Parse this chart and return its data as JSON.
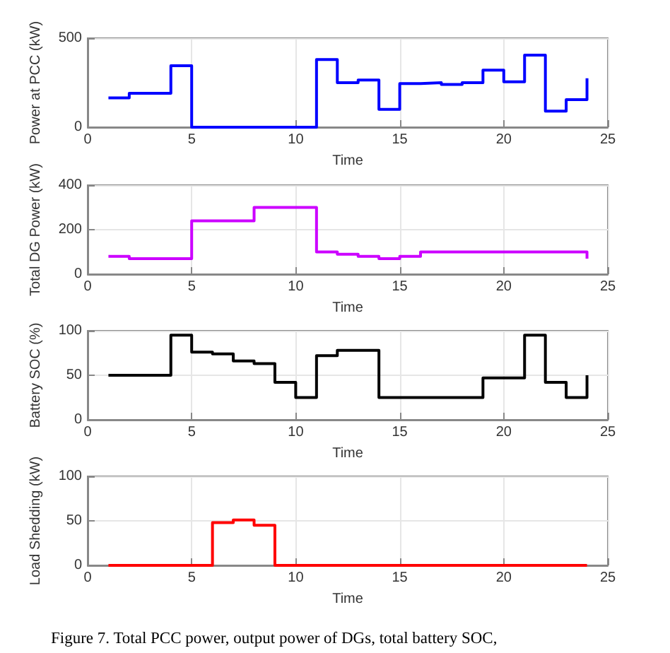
{
  "chart_data": [
    {
      "type": "step",
      "xlabel": "Time",
      "ylabel": "Power at PCC (kW)",
      "x": [
        1,
        2,
        3,
        4,
        5,
        6,
        7,
        8,
        9,
        10,
        11,
        12,
        13,
        14,
        15,
        16,
        17,
        18,
        19,
        20,
        21,
        22,
        23,
        24
      ],
      "series": [
        {
          "color": "#0000ff",
          "values": [
            165,
            190,
            190,
            345,
            0,
            0,
            0,
            0,
            0,
            0,
            380,
            250,
            265,
            100,
            245,
            250,
            240,
            250,
            320,
            255,
            405,
            90,
            155,
            275
          ]
        }
      ],
      "xlim": [
        0,
        25
      ],
      "xticks": [
        0,
        5,
        10,
        15,
        20,
        25
      ],
      "ylim": [
        0,
        500
      ],
      "yticks": [
        0,
        500
      ],
      "grid": true
    },
    {
      "type": "step",
      "xlabel": "Time",
      "ylabel": "Total DG Power (kW)",
      "x": [
        1,
        2,
        3,
        4,
        5,
        6,
        7,
        8,
        9,
        10,
        11,
        12,
        13,
        14,
        15,
        16,
        17,
        18,
        19,
        20,
        21,
        22,
        23,
        24
      ],
      "series": [
        {
          "color": "#cc00ff",
          "values": [
            80,
            70,
            70,
            70,
            240,
            240,
            240,
            300,
            300,
            300,
            100,
            90,
            80,
            70,
            80,
            100,
            100,
            100,
            100,
            100,
            100,
            100,
            100,
            70
          ]
        }
      ],
      "xlim": [
        0,
        25
      ],
      "xticks": [
        0,
        5,
        10,
        15,
        20,
        25
      ],
      "ylim": [
        0,
        400
      ],
      "yticks": [
        0,
        200,
        400
      ],
      "grid": true
    },
    {
      "type": "step",
      "xlabel": "Time",
      "ylabel": "Battery SOC (%)",
      "x": [
        1,
        2,
        3,
        4,
        5,
        6,
        7,
        8,
        9,
        10,
        11,
        12,
        13,
        14,
        15,
        16,
        17,
        18,
        19,
        20,
        21,
        22,
        23,
        24
      ],
      "series": [
        {
          "color": "#000000",
          "values": [
            50,
            50,
            50,
            95,
            76,
            74,
            66,
            63,
            42,
            25,
            72,
            78,
            78,
            25,
            25,
            25,
            25,
            25,
            47,
            47,
            95,
            42,
            25,
            50
          ]
        }
      ],
      "xlim": [
        0,
        25
      ],
      "xticks": [
        0,
        5,
        10,
        15,
        20,
        25
      ],
      "ylim": [
        0,
        100
      ],
      "yticks": [
        0,
        50,
        100
      ],
      "grid": true
    },
    {
      "type": "step",
      "xlabel": "Time",
      "ylabel": "Load Shedding (kW)",
      "x": [
        1,
        2,
        3,
        4,
        5,
        6,
        7,
        8,
        9,
        10,
        11,
        12,
        13,
        14,
        15,
        16,
        17,
        18,
        19,
        20,
        21,
        22,
        23,
        24
      ],
      "series": [
        {
          "color": "#ff0000",
          "values": [
            0,
            0,
            0,
            0,
            0,
            48,
            51,
            45,
            0,
            0,
            0,
            0,
            0,
            0,
            0,
            0,
            0,
            0,
            0,
            0,
            0,
            0,
            0,
            0
          ]
        }
      ],
      "xlim": [
        0,
        25
      ],
      "xticks": [
        0,
        5,
        10,
        15,
        20,
        25
      ],
      "ylim": [
        0,
        100
      ],
      "yticks": [
        0,
        50,
        100
      ],
      "grid": true,
      "annotations": [
        "Figure 7. Total PCC power, output power of DGs, total battery SOC,"
      ]
    }
  ]
}
